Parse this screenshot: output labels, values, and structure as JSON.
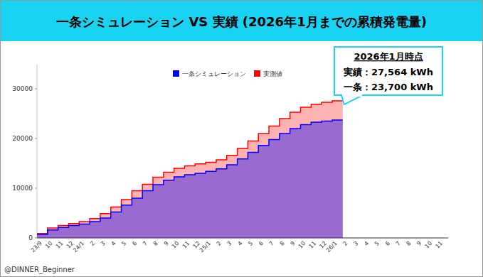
{
  "chart_data": {
    "type": "step_area",
    "title": "一条シミュレーション VS 実績 (2026年1月までの累積発電量)",
    "categories": [
      "23/9",
      "10",
      "11",
      "12",
      "24/1",
      "2",
      "3",
      "4",
      "5",
      "6",
      "7",
      "8",
      "9",
      "10",
      "11",
      "12",
      "25/1",
      "2",
      "3",
      "4",
      "5",
      "6",
      "7",
      "8",
      "9",
      "10",
      "11",
      "12",
      "26/1",
      "2",
      "3",
      "4",
      "5",
      "6",
      "7",
      "8",
      "9",
      "10",
      "11"
    ],
    "series": [
      {
        "name": "一条シミュレーション",
        "color": "#0000ff",
        "values": [
          700,
          1600,
          2100,
          2500,
          2800,
          3300,
          4000,
          5200,
          6600,
          8000,
          9500,
          10700,
          11600,
          12300,
          12700,
          13000,
          13400,
          13900,
          14700,
          15900,
          17200,
          18600,
          19800,
          21000,
          22000,
          22800,
          23300,
          23500,
          23700,
          null,
          null,
          null,
          null,
          null,
          null,
          null,
          null,
          null,
          null
        ]
      },
      {
        "name": "実測値",
        "color": "#ff0000",
        "values": [
          900,
          2000,
          2500,
          2900,
          3300,
          3900,
          4900,
          6200,
          7700,
          9500,
          10800,
          12200,
          13200,
          14000,
          14500,
          14900,
          15200,
          15700,
          16600,
          18000,
          19500,
          21000,
          22500,
          24000,
          25300,
          26300,
          26900,
          27300,
          27564,
          null,
          null,
          null,
          null,
          null,
          null,
          null,
          null,
          null,
          null
        ]
      }
    ],
    "ylim": [
      0,
      35000
    ],
    "yticks": [
      0,
      10000,
      20000,
      30000
    ],
    "grid": false,
    "legend": "top",
    "annotations": [
      "2026年1月時点",
      "実績：27,564 kWh",
      "一条：23,700 kWh"
    ],
    "credit": "@DINNER_Beginner"
  }
}
